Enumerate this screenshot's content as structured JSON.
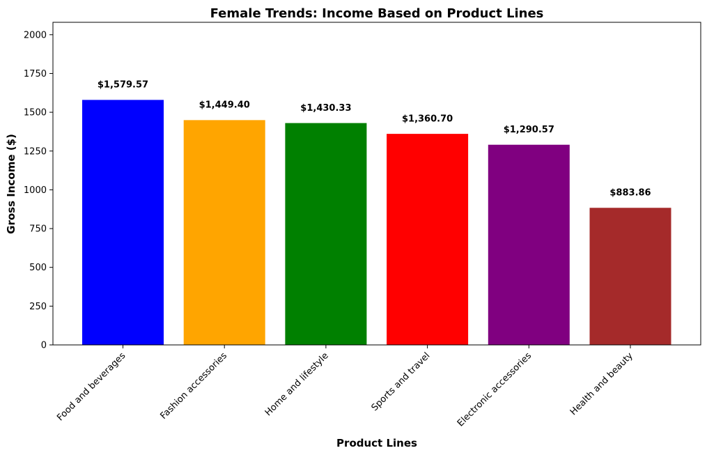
{
  "chart_data": {
    "type": "bar",
    "title": "Female Trends: Income Based on Product Lines",
    "xlabel": "Product Lines",
    "ylabel": "Gross Income ($)",
    "categories": [
      "Food and beverages",
      "Fashion accessories",
      "Home and lifestyle",
      "Sports and travel",
      "Electronic accessories",
      "Health and beauty"
    ],
    "values": [
      1579.57,
      1449.4,
      1430.33,
      1360.7,
      1290.57,
      883.86
    ],
    "value_labels": [
      "$1,579.57",
      "$1,449.40",
      "$1,430.33",
      "$1,360.70",
      "$1,290.57",
      "$883.86"
    ],
    "colors": [
      "#0000ff",
      "#ffa500",
      "#008000",
      "#ff0000",
      "#800080",
      "#a52a2a"
    ],
    "ylim": [
      0,
      2080
    ],
    "yticks": [
      0,
      250,
      500,
      750,
      1000,
      1250,
      1500,
      1750,
      2000
    ],
    "grid": false,
    "legend": "none"
  }
}
